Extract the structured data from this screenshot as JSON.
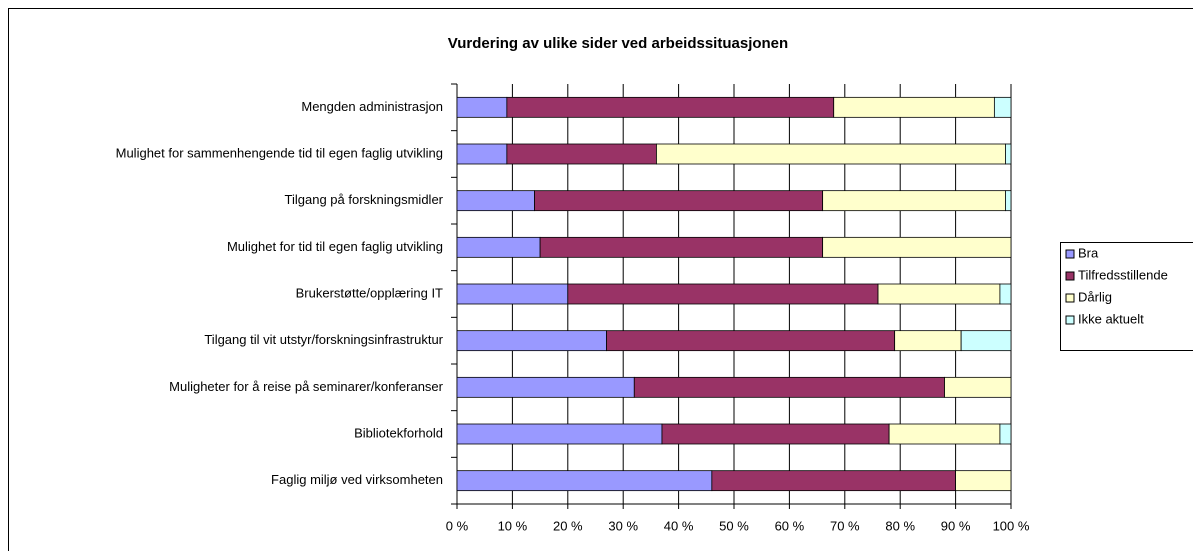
{
  "chart_data": {
    "type": "stacked_barh",
    "title": "Vurdering av ulike sider ved arbeidssituasjonen",
    "categories": [
      "Mengden administrasjon",
      "Mulighet for sammenhengende tid til egen faglig utvikling",
      "Tilgang på forskningsmidler",
      "Mulighet for tid til egen faglig utvikling",
      "Brukerstøtte/opplæring IT",
      "Tilgang til vit utstyr/forskningsinfrastruktur",
      "Muligheter for å reise på seminarer/konferanser",
      "Bibliotekforhold",
      "Faglig miljø ved virksomheten"
    ],
    "series": [
      {
        "name": "Bra",
        "color": "#9999ff",
        "values": [
          9,
          9,
          14,
          15,
          20,
          27,
          32,
          37,
          46
        ]
      },
      {
        "name": "Tilfredsstillende",
        "color": "#993366",
        "values": [
          59,
          27,
          52,
          51,
          56,
          52,
          56,
          41,
          44
        ]
      },
      {
        "name": "Dårlig",
        "color": "#ffffcc",
        "values": [
          29,
          63,
          33,
          34,
          22,
          12,
          12,
          20,
          10
        ]
      },
      {
        "name": "Ikke aktuelt",
        "color": "#ccffff",
        "values": [
          3,
          1,
          1,
          0,
          2,
          9,
          0,
          2,
          0
        ]
      }
    ],
    "xlim": [
      0,
      100
    ],
    "xticks": [
      {
        "value": 0,
        "label": "0 %"
      },
      {
        "value": 10,
        "label": "10 %"
      },
      {
        "value": 20,
        "label": "20 %"
      },
      {
        "value": 30,
        "label": "30 %"
      },
      {
        "value": 40,
        "label": "40 %"
      },
      {
        "value": 50,
        "label": "50 %"
      },
      {
        "value": 60,
        "label": "60 %"
      },
      {
        "value": 70,
        "label": "70 %"
      },
      {
        "value": 80,
        "label": "80 %"
      },
      {
        "value": 90,
        "label": "90 %"
      },
      {
        "value": 100,
        "label": "100 %"
      }
    ],
    "grid": true,
    "legend": "right"
  }
}
